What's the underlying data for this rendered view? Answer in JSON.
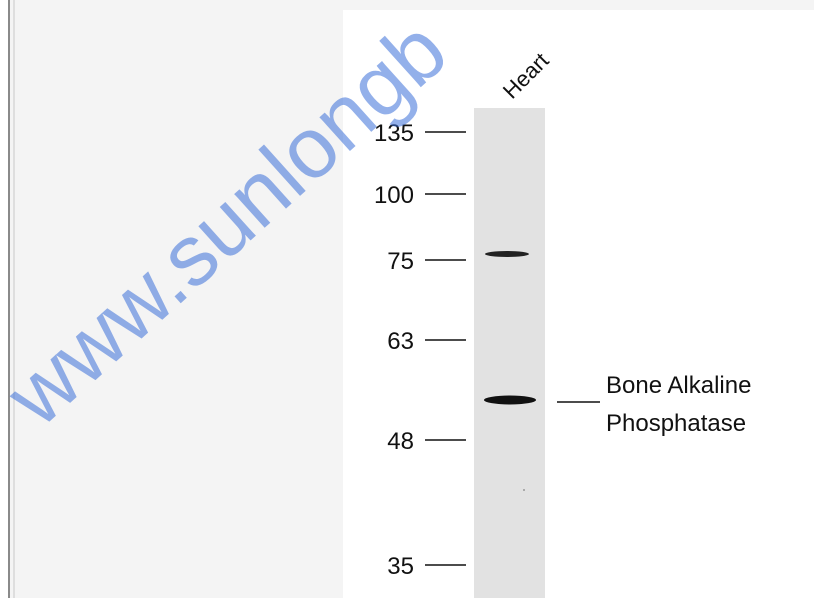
{
  "lane_label": "Heart",
  "markers": [
    "135",
    "100",
    "75",
    "63",
    "48",
    "35"
  ],
  "target_label": [
    "Bone Alkaline",
    "Phosphatase"
  ],
  "watermark": "www.sunlongb"
}
